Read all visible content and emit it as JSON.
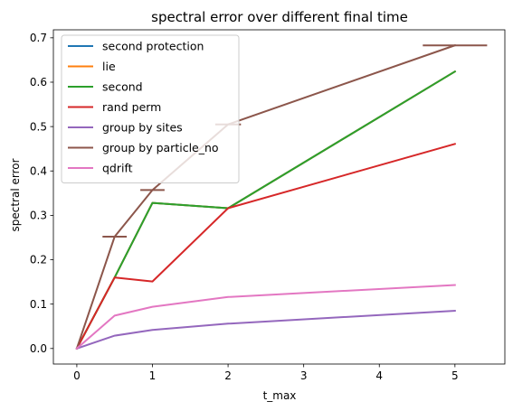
{
  "chart_data": {
    "type": "line",
    "title": "spectral error over different final time",
    "xlabel": "t_max",
    "ylabel": "spectral error",
    "xlim": [
      -0.31,
      5.66
    ],
    "ylim": [
      -0.035,
      0.718
    ],
    "xticks": [
      0,
      1,
      2,
      3,
      4,
      5
    ],
    "yticks": [
      0.0,
      0.1,
      0.2,
      0.3,
      0.4,
      0.5,
      0.6,
      0.7
    ],
    "xtick_labels": [
      "0",
      "1",
      "2",
      "3",
      "4",
      "5"
    ],
    "ytick_labels": [
      "0.0",
      "0.1",
      "0.2",
      "0.3",
      "0.4",
      "0.5",
      "0.6",
      "0.7"
    ],
    "grid": false,
    "legend_position": "top-left",
    "x": [
      0,
      0.5,
      1,
      2,
      5
    ],
    "series": [
      {
        "name": "second protection",
        "color": "#1f77b4",
        "values": [
          0.0,
          0.16,
          0.328,
          0.316,
          0.624
        ]
      },
      {
        "name": "lie",
        "color": "#ff7f0e",
        "values": [
          0.0,
          0.16,
          0.328,
          0.316,
          0.624
        ]
      },
      {
        "name": "second",
        "color": "#2ca02c",
        "values": [
          0.0,
          0.16,
          0.328,
          0.316,
          0.624
        ]
      },
      {
        "name": "rand perm",
        "color": "#d62728",
        "values": [
          0.0,
          0.16,
          0.151,
          0.316,
          0.461
        ]
      },
      {
        "name": "group by sites",
        "color": "#9467bd",
        "values": [
          0.0,
          0.029,
          0.042,
          0.056,
          0.085
        ]
      },
      {
        "name": "group by particle_no",
        "color": "#8c564b",
        "values": [
          0.0,
          0.252,
          0.357,
          0.505,
          0.683
        ],
        "error_bars": true
      },
      {
        "name": "qdrift",
        "color": "#e377c2",
        "values": [
          0.0,
          0.074,
          0.094,
          0.116,
          0.143
        ]
      }
    ]
  }
}
